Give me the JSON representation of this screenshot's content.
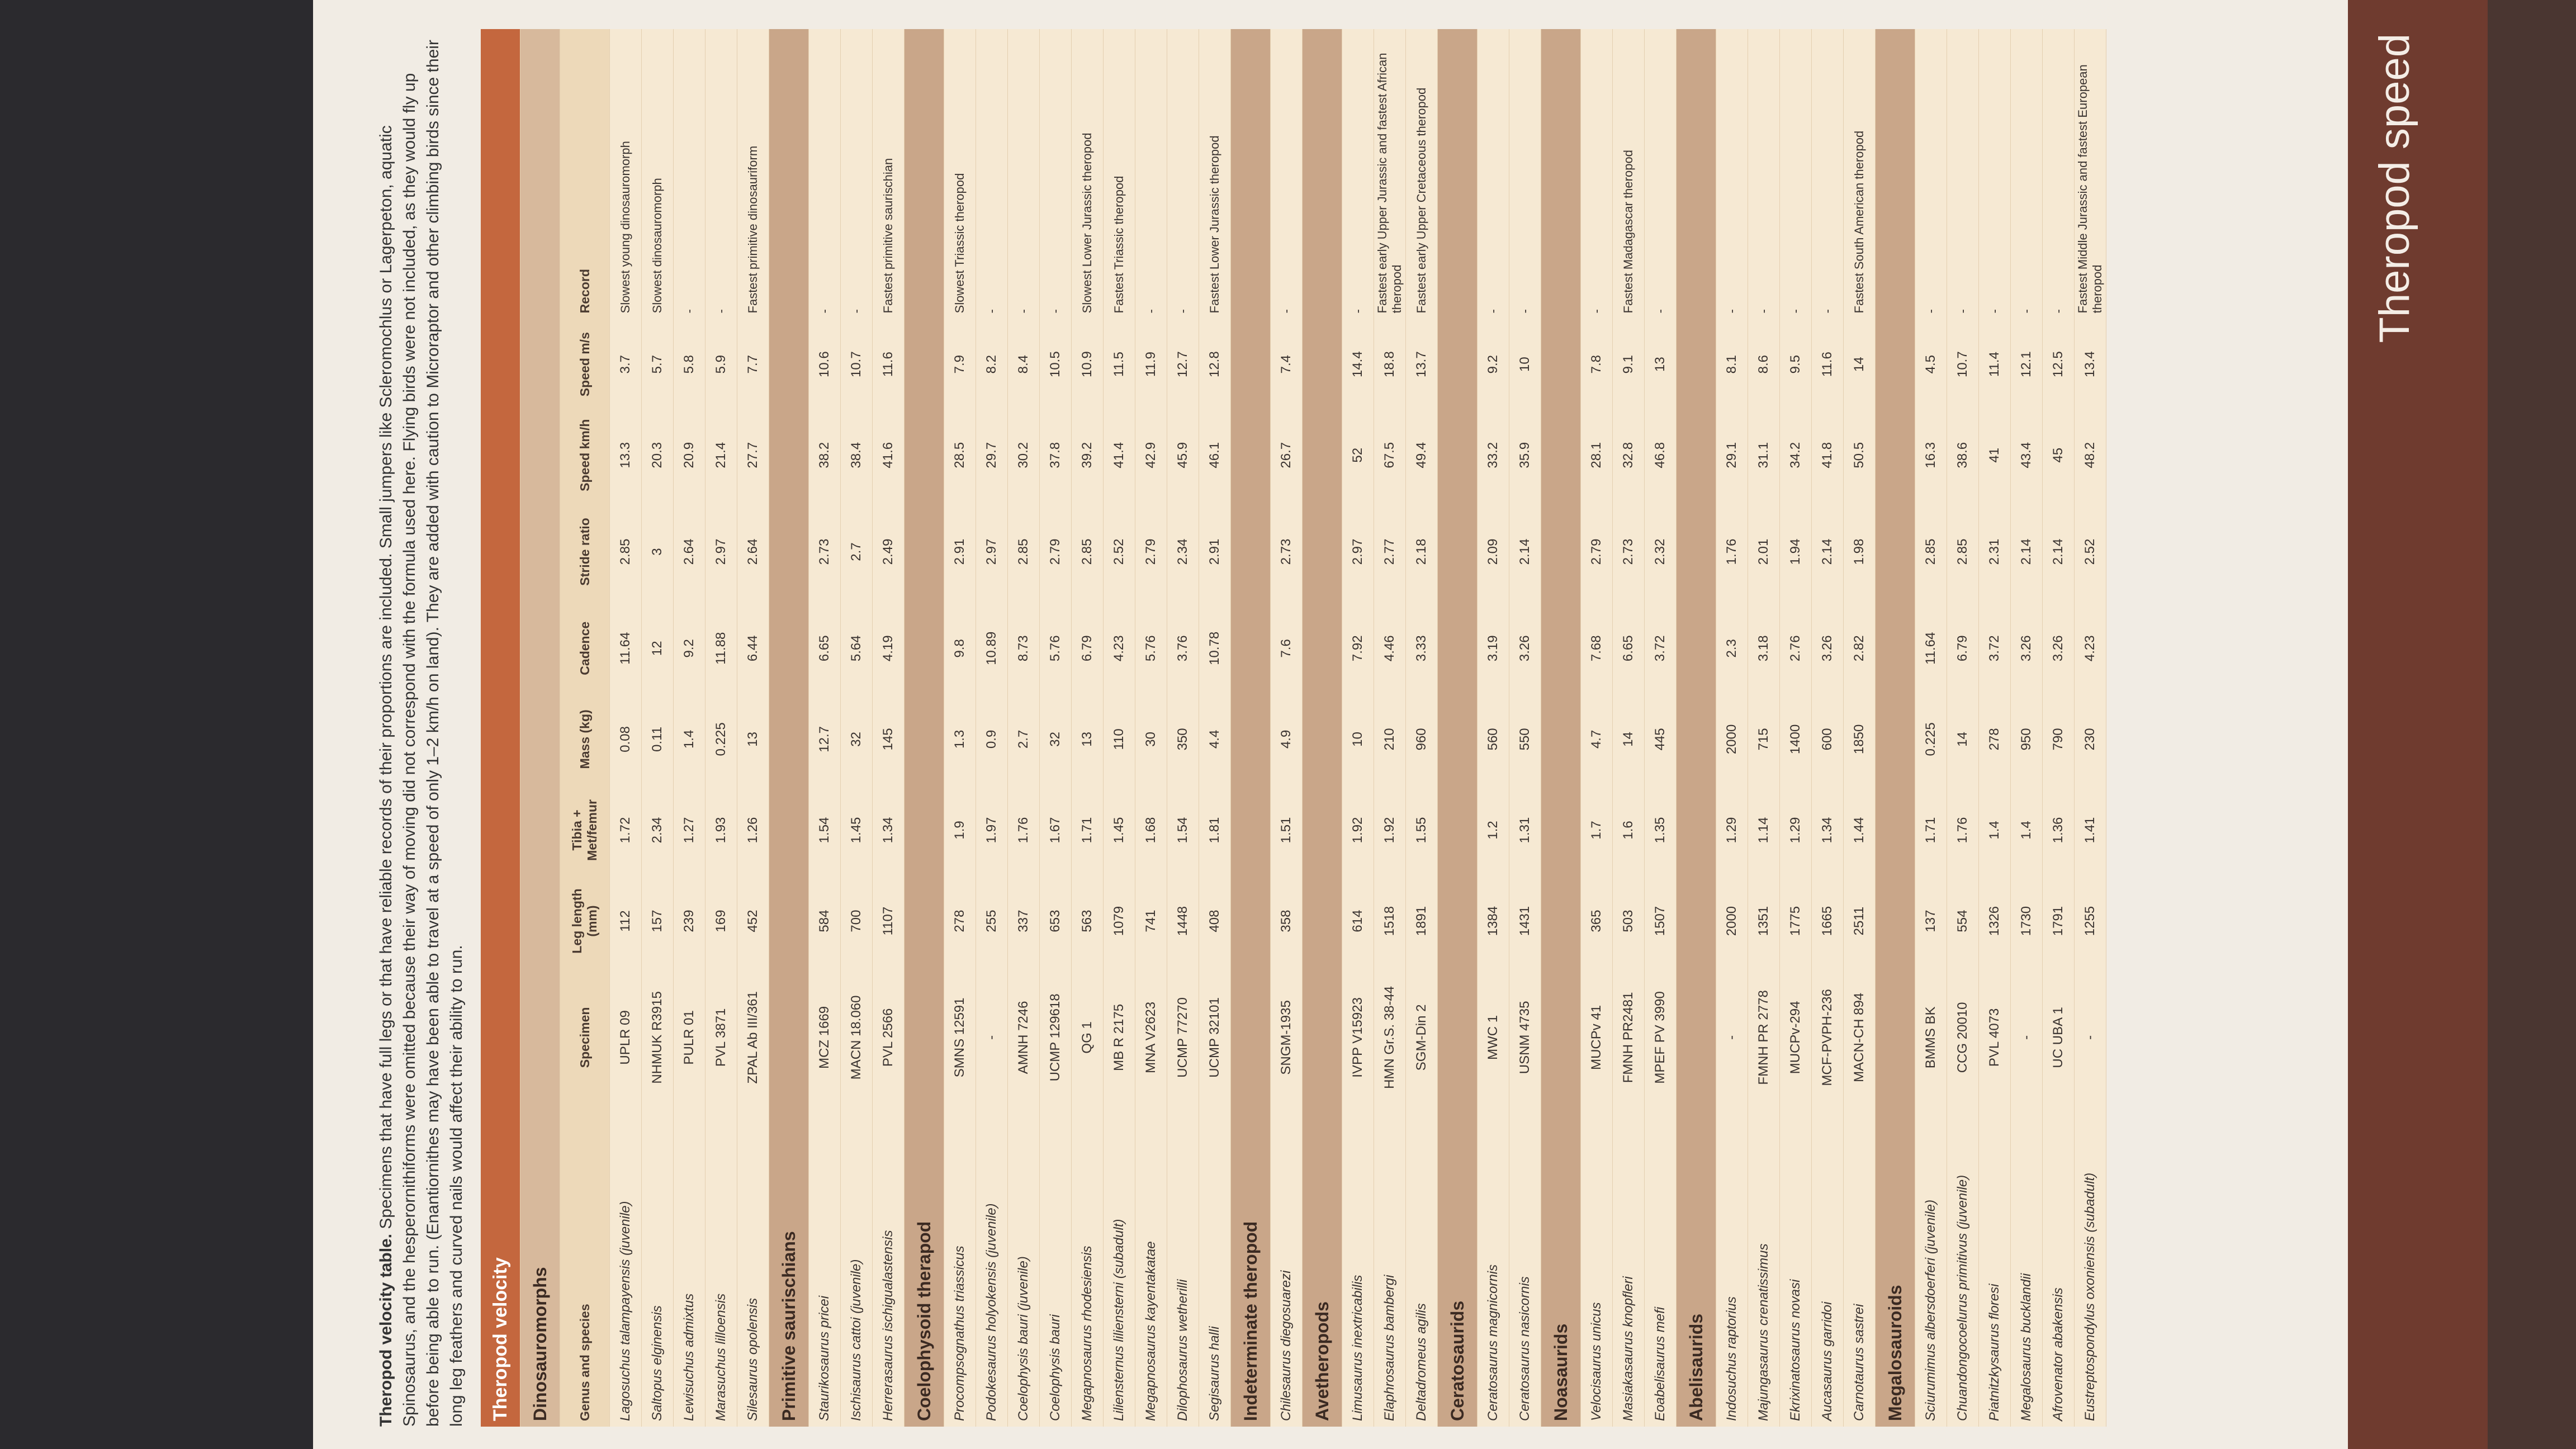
{
  "caption": {
    "label": "Theropod velocity table.",
    "text": "Specimens that have full legs or that have reliable records of their proportions are included. Small jumpers like Scleromochlus or Lagerpeton, aquatic Spinosaurus, and the hesperornithiforms were omitted because their way of moving did not correspond with the formula used here. Flying birds were not included, as they would fly up before being able to run. (Enantiornithes may have been able to travel at a speed of only 1–2 km/h on land). They are added with caution to Microraptor and other climbing birds since their long leg feathers and curved nails would affect their ability to run."
  },
  "footer": {
    "title": "Theropod speed"
  },
  "table": {
    "title": "Theropod velocity",
    "columns": [
      "Genus and species",
      "Specimen",
      "Leg length (mm)",
      "Tibia + Met/femur",
      "Mass (kg)",
      "Cadence",
      "Stride ratio",
      "Speed km/h",
      "Speed m/s",
      "Record"
    ],
    "groups": [
      {
        "name": "Dinosauromorphs",
        "rows": [
          [
            "Lagosuchus talampayensis (juvenile)",
            "UPLR 09",
            112,
            1.72,
            0.08,
            11.64,
            2.85,
            13.3,
            3.7,
            "Slowest young dinosauromorph"
          ],
          [
            "Saltopus elginensis",
            "NHMUK R3915",
            157,
            2.34,
            0.11,
            12,
            3,
            20.3,
            5.7,
            "Slowest dinosauromorph"
          ],
          [
            "Lewisuchus admixtus",
            "PULR 01",
            239,
            1.27,
            1.4,
            9.2,
            2.64,
            20.9,
            5.8,
            "-"
          ],
          [
            "Marasuchus lilloensis",
            "PVL 3871",
            169,
            1.93,
            0.225,
            11.88,
            2.97,
            21.4,
            5.9,
            "-"
          ],
          [
            "Silesaurus opolensis",
            "ZPAL Ab III/361",
            452,
            1.26,
            13,
            6.44,
            2.64,
            27.7,
            7.7,
            "Fastest primitive dinosauriform"
          ]
        ]
      },
      {
        "name": "Primitive saurischians",
        "rows": [
          [
            "Staurikosaurus pricei",
            "MCZ 1669",
            584,
            1.54,
            12.7,
            6.65,
            2.73,
            38.2,
            10.6,
            "-"
          ],
          [
            "Ischisaurus cattoi (juvenile)",
            "MACN 18.060",
            700,
            1.45,
            32,
            5.64,
            2.7,
            38.4,
            10.7,
            "-"
          ],
          [
            "Herrerasaurus ischigualastensis",
            "PVL 2566",
            1107,
            1.34,
            145,
            4.19,
            2.49,
            41.6,
            11.6,
            "Fastest primitive saurischian"
          ]
        ]
      },
      {
        "name": "Coelophysoid therapod",
        "rows": [
          [
            "Procompsognathus triassicus",
            "SMNS 12591",
            278,
            1.9,
            1.3,
            9.8,
            2.91,
            28.5,
            7.9,
            "Slowest Triassic theropod"
          ],
          [
            "Podokesaurus holyokensis (juvenile)",
            "-",
            255,
            1.97,
            0.9,
            10.89,
            2.97,
            29.7,
            8.2,
            "-"
          ],
          [
            "Coelophysis bauri (juvenile)",
            "AMNH 7246",
            337,
            1.76,
            2.7,
            8.73,
            2.85,
            30.2,
            8.4,
            "-"
          ],
          [
            "Coelophysis bauri",
            "UCMP 129618",
            653,
            1.67,
            32,
            5.76,
            2.79,
            37.8,
            10.5,
            "-"
          ],
          [
            "Megapnosaurus rhodesiensis",
            "QG 1",
            563,
            1.71,
            13,
            6.79,
            2.85,
            39.2,
            10.9,
            "Slowest Lower Jurassic theropod"
          ],
          [
            "Liliensternus liliensterni (subadult)",
            "MB R 2175",
            1079,
            1.45,
            110,
            4.23,
            2.52,
            41.4,
            11.5,
            "Fastest Triassic theropod"
          ],
          [
            "Megapnosaurus kayentakatae",
            "MNA V2623",
            741,
            1.68,
            30,
            5.76,
            2.79,
            42.9,
            11.9,
            "-"
          ],
          [
            "Dilophosaurus wetherilli",
            "UCMP 77270",
            1448,
            1.54,
            350,
            3.76,
            2.34,
            45.9,
            12.7,
            "-"
          ],
          [
            "Segisaurus halli",
            "UCMP 32101",
            408,
            1.81,
            4.4,
            10.78,
            2.91,
            46.1,
            12.8,
            "Fastest Lower Jurassic theropod"
          ]
        ]
      },
      {
        "name": "Indeterminate theropod",
        "rows": [
          [
            "Chilesaurus diegosuarezi",
            "SNGM-1935",
            358,
            1.51,
            4.9,
            7.6,
            2.73,
            26.7,
            7.4,
            "-"
          ]
        ]
      },
      {
        "name": "Avetheropods",
        "rows": [
          [
            "Limusaurus inextricabilis",
            "IVPP V15923",
            614,
            1.92,
            10,
            7.92,
            2.97,
            52,
            14.4,
            "-"
          ],
          [
            "Elaphrosaurus bambergi",
            "HMN Gr.S. 38-44",
            1518,
            1.92,
            210,
            4.46,
            2.77,
            67.5,
            18.8,
            "Fastest early Upper Jurassic and fastest African theropod"
          ],
          [
            "Deltadromeus agilis",
            "SGM-Din 2",
            1891,
            1.55,
            960,
            3.33,
            2.18,
            49.4,
            13.7,
            "Fastest early Upper Cretaceous theropod"
          ]
        ]
      },
      {
        "name": "Ceratosaurids",
        "rows": [
          [
            "Ceratosaurus magnicornis",
            "MWC 1",
            1384,
            1.2,
            560,
            3.19,
            2.09,
            33.2,
            9.2,
            "-"
          ],
          [
            "Ceratosaurus nasicornis",
            "USNM 4735",
            1431,
            1.31,
            550,
            3.26,
            2.14,
            35.9,
            10,
            "-"
          ]
        ]
      },
      {
        "name": "Noasaurids",
        "rows": [
          [
            "Velocisaurus unicus",
            "MUCPv 41",
            365,
            1.7,
            4.7,
            7.68,
            2.79,
            28.1,
            7.8,
            "-"
          ],
          [
            "Masiakasaurus knopfleri",
            "FMNH PR2481",
            503,
            1.6,
            14,
            6.65,
            2.73,
            32.8,
            9.1,
            "Fastest Madagascar theropod"
          ],
          [
            "Eoabelisaurus mefi",
            "MPEF PV 3990",
            1507,
            1.35,
            445,
            3.72,
            2.32,
            46.8,
            13,
            "-"
          ]
        ]
      },
      {
        "name": "Abelisaurids",
        "rows": [
          [
            "Indosuchus raptorius",
            "-",
            2000,
            1.29,
            2000,
            2.3,
            1.76,
            29.1,
            8.1,
            "-"
          ],
          [
            "Majungasaurus crenatissimus",
            "FMNH PR 2778",
            1351,
            1.14,
            715,
            3.18,
            2.01,
            31.1,
            8.6,
            "-"
          ],
          [
            "Ekrixinatosaurus novasi",
            "MUCPv-294",
            1775,
            1.29,
            1400,
            2.76,
            1.94,
            34.2,
            9.5,
            "-"
          ],
          [
            "Aucasaurus garridoi",
            "MCF-PVPH-236",
            1665,
            1.34,
            600,
            3.26,
            2.14,
            41.8,
            11.6,
            "-"
          ],
          [
            "Carnotaurus sastrei",
            "MACN-CH 894",
            2511,
            1.44,
            1850,
            2.82,
            1.98,
            50.5,
            14,
            "Fastest South American theropod"
          ]
        ]
      },
      {
        "name": "Megalosauroids",
        "rows": [
          [
            "Sciurumimus albersdoerferi (juvenile)",
            "BMMS BK",
            137,
            1.71,
            0.225,
            11.64,
            2.85,
            16.3,
            4.5,
            "-"
          ],
          [
            "Chuandongocoelurus primitivus (juvenile)",
            "CCG 20010",
            554,
            1.76,
            14,
            6.79,
            2.85,
            38.6,
            10.7,
            "-"
          ],
          [
            "Piatnitzkysaurus floresi",
            "PVL 4073",
            1326,
            1.4,
            278,
            3.72,
            2.31,
            41,
            11.4,
            "-"
          ],
          [
            "Megalosaurus bucklandii",
            "-",
            1730,
            1.4,
            950,
            3.26,
            2.14,
            43.4,
            12.1,
            "-"
          ],
          [
            "Afrovenator abakensis",
            "UC UBA 1",
            1791,
            1.36,
            790,
            3.26,
            2.14,
            45,
            12.5,
            "-"
          ],
          [
            "Eustreptospondylus oxoniensis (subadult)",
            "-",
            1255,
            1.41,
            230,
            4.23,
            2.52,
            48.2,
            13.4,
            "Fastest Middle Jurassic and fastest European theropod"
          ]
        ]
      }
    ]
  }
}
